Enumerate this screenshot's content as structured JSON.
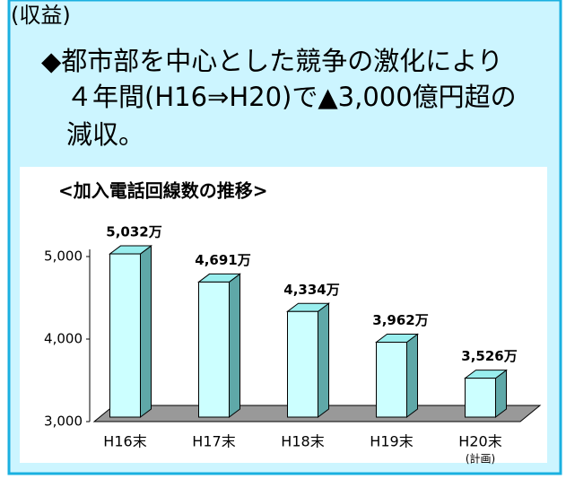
{
  "heading": "(収益)",
  "bullet_lines": [
    "◆都市部を中心とした競争の激化により",
    "４年間(H16⇒H20)で▲3,000億円超の",
    "減収。"
  ],
  "chart_data": {
    "type": "bar3d",
    "title": "<加入電話回線数の推移>",
    "categories": [
      "H16末",
      "H17末",
      "H18末",
      "H19末",
      "H20末"
    ],
    "category_notes": [
      null,
      null,
      null,
      null,
      "(計画)"
    ],
    "values": [
      5032,
      4691,
      4334,
      3962,
      3526
    ],
    "value_labels": [
      "5,032万",
      "4,691万",
      "4,334万",
      "3,962万",
      "3,526万"
    ],
    "color": "#ccffff",
    "ylim": [
      3000,
      5000
    ],
    "yticks": [
      {
        "value": 3000,
        "label": "3,000"
      },
      {
        "value": 4000,
        "label": "4,000"
      },
      {
        "value": 5000,
        "label": "5,000"
      }
    ]
  }
}
